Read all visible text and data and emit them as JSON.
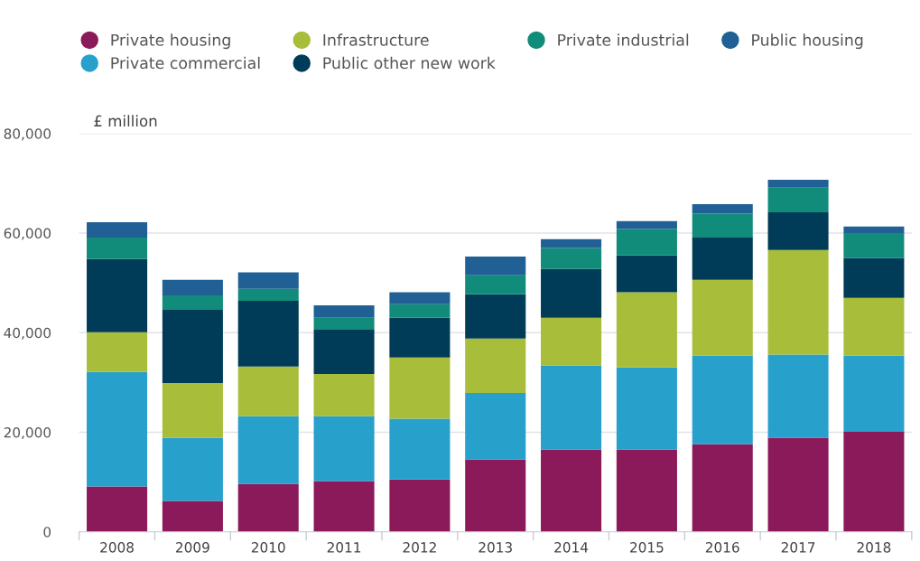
{
  "chart_data": {
    "type": "bar",
    "stacked": true,
    "ylabel": "£ million",
    "categories": [
      "2008",
      "2009",
      "2010",
      "2011",
      "2012",
      "2013",
      "2014",
      "2015",
      "2016",
      "2017",
      "2018"
    ],
    "series": [
      {
        "name": "Private housing",
        "color": "#8b1a5a",
        "values": [
          9100,
          6200,
          9600,
          10200,
          10500,
          14500,
          16500,
          16500,
          17600,
          18900,
          20100
        ]
      },
      {
        "name": "Private commercial",
        "color": "#27a0cc",
        "values": [
          23000,
          12700,
          13600,
          13000,
          12200,
          13400,
          16900,
          16500,
          17800,
          16700,
          15300
        ]
      },
      {
        "name": "Infrastructure",
        "color": "#a8bd3a",
        "values": [
          8000,
          11000,
          10000,
          8500,
          12300,
          10900,
          9600,
          15100,
          15200,
          21000,
          11600
        ]
      },
      {
        "name": "Public other new work",
        "color": "#003c57",
        "values": [
          14700,
          14700,
          13200,
          8900,
          8000,
          8900,
          9800,
          7400,
          8500,
          7600,
          8000
        ]
      },
      {
        "name": "Private industrial",
        "color": "#118c7b",
        "values": [
          4300,
          2900,
          2400,
          2400,
          2700,
          3800,
          4200,
          5300,
          4800,
          4900,
          5000
        ]
      },
      {
        "name": "Public housing",
        "color": "#206095",
        "values": [
          3100,
          3100,
          3300,
          2500,
          2400,
          3800,
          1800,
          1600,
          1900,
          1600,
          1300
        ]
      }
    ],
    "ylim": [
      0,
      80000
    ],
    "yticks": [
      0,
      {
        "value": 20000,
        "label": "20,000"
      },
      {
        "value": 40000,
        "label": "40,000"
      },
      {
        "value": 60000,
        "label": "60,000"
      },
      {
        "value": 80000,
        "label": "80,000"
      }
    ],
    "grid": "y",
    "legend": "top left"
  }
}
